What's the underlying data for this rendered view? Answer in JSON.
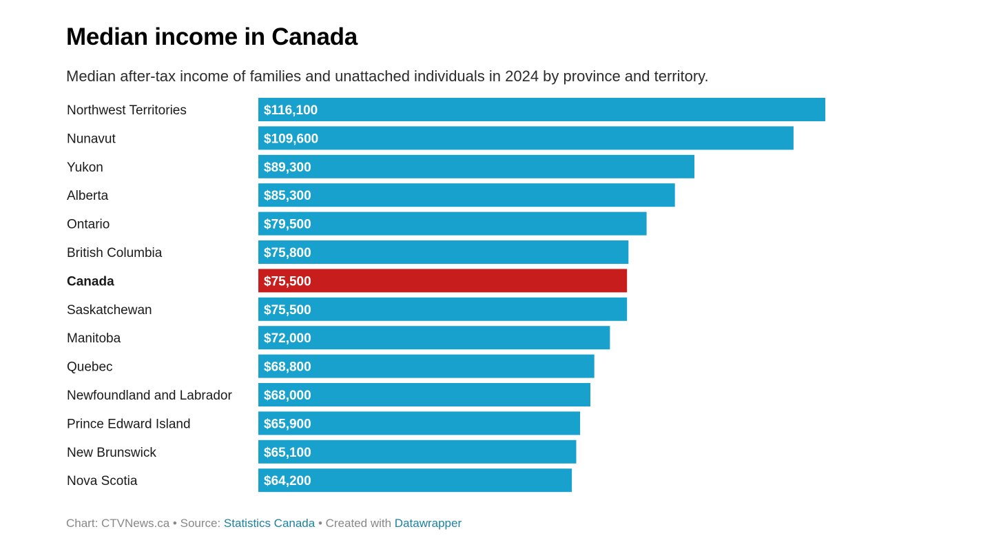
{
  "title": "Median income in Canada",
  "subtitle": "Median after-tax income of families and unattached individuals in 2024 by province and territory.",
  "footer": {
    "chart_prefix": "Chart: CTVNews.ca • Source: ",
    "source_link": "Statistics Canada",
    "created_prefix": " • Created with ",
    "tool_link": "Datawrapper"
  },
  "colors": {
    "bar": "#18a1cd",
    "highlight": "#c71e1d",
    "bar_label": "#ffffff",
    "category_label": "#1a1a1a"
  },
  "chart_data": {
    "type": "bar",
    "orientation": "horizontal",
    "title": "Median income in Canada",
    "subtitle": "Median after-tax income of families and unattached individuals in 2024 by province and territory.",
    "xlabel": "",
    "ylabel": "",
    "xlim": [
      0,
      116100
    ],
    "grid": false,
    "legend": "none",
    "highlight": "Canada",
    "categories": [
      "Northwest Territories",
      "Nunavut",
      "Yukon",
      "Alberta",
      "Ontario",
      "British Columbia",
      "Canada",
      "Saskatchewan",
      "Manitoba",
      "Quebec",
      "Newfoundland and Labrador",
      "Prince Edward Island",
      "New Brunswick",
      "Nova Scotia"
    ],
    "values": [
      116100,
      109600,
      89300,
      85300,
      79500,
      75800,
      75500,
      75500,
      72000,
      68800,
      68000,
      65900,
      65100,
      64200
    ],
    "value_labels": [
      "$116,100",
      "$109,600",
      "$89,300",
      "$85,300",
      "$79,500",
      "$75,800",
      "$75,500",
      "$75,500",
      "$72,000",
      "$68,800",
      "$68,000",
      "$65,900",
      "$65,100",
      "$64,200"
    ]
  }
}
